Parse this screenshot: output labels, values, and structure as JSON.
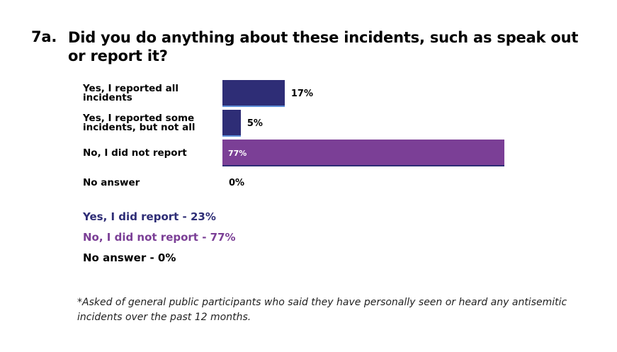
{
  "question": {
    "number": "7a.",
    "text": "Did you do anything about these incidents, such as speak out or report it?"
  },
  "chart_data": {
    "type": "bar",
    "orientation": "horizontal",
    "categories": [
      "Yes, I reported all incidents",
      "Yes, I reported some incidents, but not all",
      "No, I did not report",
      "No answer"
    ],
    "values": [
      17,
      5,
      77,
      0
    ],
    "value_labels": [
      "17%",
      "5%",
      "77%",
      "0%"
    ],
    "label_inside": [
      false,
      false,
      true,
      false
    ],
    "bar_colors": [
      "#2e2d76",
      "#2e2d76",
      "#7b3f96",
      "#2e2d76"
    ],
    "edge_colors": [
      "#5d8fd8",
      "#5d8fd8",
      "#2e2d76",
      "#5d8fd8"
    ],
    "xlim": [
      0,
      100
    ],
    "grid": false
  },
  "summary": [
    {
      "text": "Yes, I did report - 23%",
      "color": "#2e2d76"
    },
    {
      "text": "No, I did not report - 77%",
      "color": "#7b3f96"
    },
    {
      "text": "No answer - 0%",
      "color": "#000000"
    }
  ],
  "footnote": "*Asked of general public participants who said they have personally seen or heard any antisemitic incidents over the past 12 months."
}
